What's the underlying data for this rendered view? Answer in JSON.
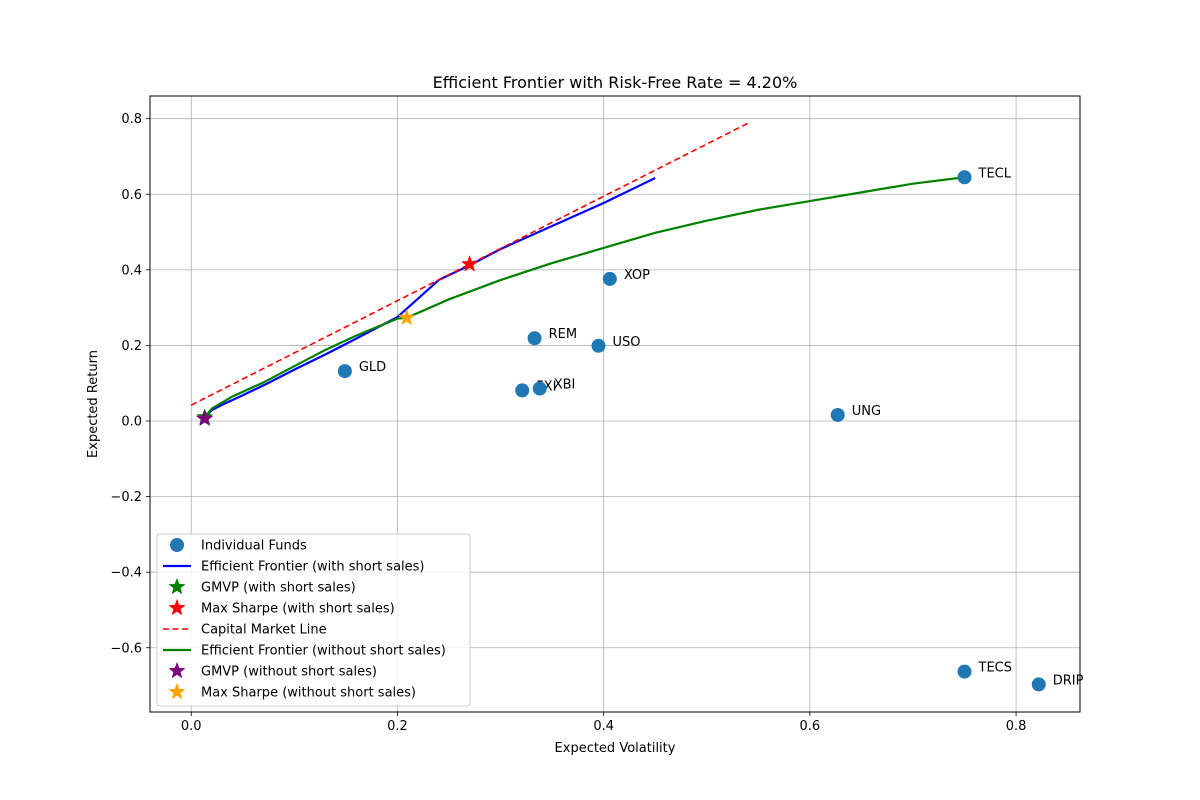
{
  "chart_data": {
    "type": "scatter",
    "title": "Efficient Frontier with Risk-Free Rate = 4.20%",
    "xlabel": "Expected Volatility",
    "ylabel": "Expected Return",
    "xlim": [
      -0.04,
      0.862
    ],
    "ylim": [
      -0.77,
      0.86
    ],
    "xticks": [
      0.0,
      0.2,
      0.4,
      0.6,
      0.8
    ],
    "xtick_labels": [
      "0.0",
      "0.2",
      "0.4",
      "0.6",
      "0.8"
    ],
    "yticks": [
      -0.6,
      -0.4,
      -0.2,
      0.0,
      0.2,
      0.4,
      0.6,
      0.8
    ],
    "ytick_labels": [
      "−0.6",
      "−0.4",
      "−0.2",
      "0.0",
      "0.2",
      "0.4",
      "0.6",
      "0.8"
    ],
    "grid": true,
    "legend_position": "lower-left",
    "funds": [
      {
        "name": "TECL",
        "x": 0.75,
        "y": 0.645
      },
      {
        "name": "XOP",
        "x": 0.406,
        "y": 0.376
      },
      {
        "name": "REM",
        "x": 0.333,
        "y": 0.219
      },
      {
        "name": "USO",
        "x": 0.395,
        "y": 0.199
      },
      {
        "name": "GLD",
        "x": 0.149,
        "y": 0.132
      },
      {
        "name": "FXI",
        "x": 0.321,
        "y": 0.081
      },
      {
        "name": "XBI",
        "x": 0.338,
        "y": 0.086
      },
      {
        "name": "UNG",
        "x": 0.627,
        "y": 0.016
      },
      {
        "name": "TECS",
        "x": 0.75,
        "y": -0.663
      },
      {
        "name": "DRIP",
        "x": 0.822,
        "y": -0.697
      }
    ],
    "series": [
      {
        "name": "Efficient Frontier (with short sales)",
        "type": "line",
        "color": "#0000ff",
        "style": "solid",
        "x": [
          0.013,
          0.02,
          0.03,
          0.05,
          0.075,
          0.1,
          0.13,
          0.16,
          0.2,
          0.24,
          0.27,
          0.3,
          0.35,
          0.4,
          0.45
        ],
        "y": [
          0.01,
          0.029,
          0.043,
          0.068,
          0.101,
          0.136,
          0.176,
          0.218,
          0.275,
          0.373,
          0.412,
          0.455,
          0.516,
          0.577,
          0.643
        ]
      },
      {
        "name": "Capital Market Line",
        "type": "line",
        "color": "#ff0000",
        "style": "dashed",
        "x": [
          0.0,
          0.54
        ],
        "y": [
          0.042,
          0.788
        ]
      },
      {
        "name": "Efficient Frontier (without short sales)",
        "type": "line",
        "color": "#008000",
        "style": "solid",
        "x": [
          0.013,
          0.02,
          0.04,
          0.07,
          0.1,
          0.13,
          0.16,
          0.2,
          0.209,
          0.25,
          0.3,
          0.35,
          0.4,
          0.45,
          0.5,
          0.55,
          0.6,
          0.65,
          0.7,
          0.75
        ],
        "y": [
          0.01,
          0.033,
          0.065,
          0.102,
          0.145,
          0.188,
          0.226,
          0.271,
          0.273,
          0.322,
          0.373,
          0.418,
          0.458,
          0.498,
          0.53,
          0.559,
          0.582,
          0.605,
          0.628,
          0.645
        ]
      }
    ],
    "markers": [
      {
        "name": "GMVP (with short sales)",
        "x": 0.013,
        "y": 0.01,
        "color": "#008000",
        "shape": "star"
      },
      {
        "name": "Max Sharpe (with short sales)",
        "x": 0.27,
        "y": 0.415,
        "color": "#ff0000",
        "shape": "star"
      },
      {
        "name": "GMVP (without short sales)",
        "x": 0.013,
        "y": 0.006,
        "color": "#800080",
        "shape": "star"
      },
      {
        "name": "Max Sharpe (without short sales)",
        "x": 0.209,
        "y": 0.273,
        "color": "#ffa500",
        "shape": "star"
      }
    ],
    "fund_series_name": "Individual Funds",
    "fund_color": "#1f77b4",
    "legend": [
      {
        "label": "Individual Funds",
        "kind": "dot",
        "color": "#1f77b4"
      },
      {
        "label": "Efficient Frontier (with short sales)",
        "kind": "line",
        "color": "#0000ff"
      },
      {
        "label": "GMVP (with short sales)",
        "kind": "star",
        "color": "#008000"
      },
      {
        "label": "Max Sharpe (with short sales)",
        "kind": "star",
        "color": "#ff0000"
      },
      {
        "label": "Capital Market Line",
        "kind": "dash",
        "color": "#ff0000"
      },
      {
        "label": "Efficient Frontier (without short sales)",
        "kind": "line",
        "color": "#008000"
      },
      {
        "label": "GMVP (without short sales)",
        "kind": "star",
        "color": "#800080"
      },
      {
        "label": "Max Sharpe (without short sales)",
        "kind": "star",
        "color": "#ffa500"
      }
    ]
  }
}
